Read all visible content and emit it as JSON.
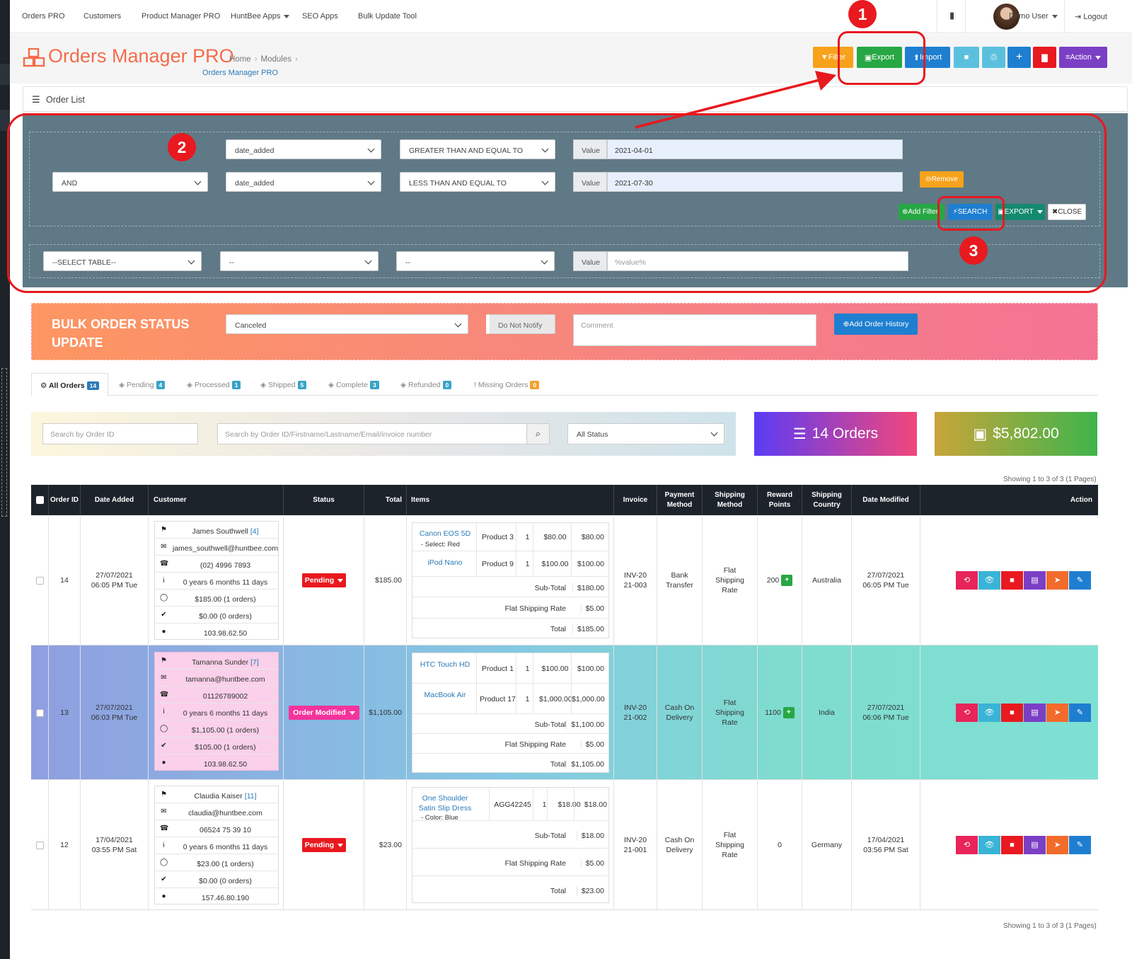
{
  "nav": {
    "items": [
      "Orders PRO",
      "Customers",
      "Product Manager PRO",
      "HuntBee Apps",
      "SEO Apps",
      "Bulk Update Tool"
    ],
    "user": "Demo User",
    "logout": "Logout"
  },
  "header": {
    "title": "Orders Manager PRO",
    "breadcrumb": [
      "Home",
      "Modules",
      "Orders Manager PRO"
    ]
  },
  "toolbar": {
    "filter": "Filter",
    "export": "Export",
    "import": "Import",
    "action": "Action"
  },
  "panel": {
    "title": "Order List"
  },
  "filters": {
    "row1": {
      "field": "date_added",
      "op": "GREATER THAN AND EQUAL TO",
      "value_label": "Value",
      "value": "2021-04-01"
    },
    "row2": {
      "join": "AND",
      "field": "date_added",
      "op": "LESS THAN AND EQUAL TO",
      "value_label": "Value",
      "value": "2021-07-30"
    },
    "remove": "Remove",
    "add_filter": "Add Filter",
    "search": "SEARCH",
    "export": "EXPORT",
    "close": "CLOSE",
    "row3": {
      "table": "--SELECT TABLE--",
      "field": "--",
      "op": "--",
      "value_label": "Value",
      "placeholder": "%value%"
    }
  },
  "annotations": [
    "1",
    "2",
    "3"
  ],
  "bulk": {
    "title": "BULK ORDER STATUS UPDATE",
    "status": "Canceled",
    "notify": "Do Not Notify",
    "comment_placeholder": "Comment",
    "add_history": "Add Order History"
  },
  "tabs": [
    {
      "label": "All Orders",
      "count": "14",
      "color": "#2a7ab8"
    },
    {
      "label": "Pending",
      "count": "4",
      "color": "#39a3c8"
    },
    {
      "label": "Processed",
      "count": "1",
      "color": "#39a3c8"
    },
    {
      "label": "Shipped",
      "count": "5",
      "color": "#39a3c8"
    },
    {
      "label": "Complete",
      "count": "3",
      "color": "#39a3c8"
    },
    {
      "label": "Refunded",
      "count": "0",
      "color": "#39a3c8"
    },
    {
      "label": "Missing Orders",
      "count": "0",
      "color": "#f0a030"
    }
  ],
  "search": {
    "order_id_placeholder": "Search by Order ID",
    "query_placeholder": "Search by Order ID/Firstname/Lastname/Email/invoice number",
    "status": "All Status"
  },
  "stats": {
    "orders": "14 Orders",
    "total": "$5,802.00"
  },
  "showing": "Showing 1 to 3 of 3 (1 Pages)",
  "columns": [
    "Order ID",
    "Date Added",
    "Customer",
    "Status",
    "Total",
    "Items",
    "Invoice",
    "Payment Method",
    "Shipping Method",
    "Reward Points",
    "Shipping Country",
    "Date Modified",
    "Action"
  ],
  "orders": [
    {
      "id": "14",
      "date": "27/07/2021",
      "time": "06:05 PM Tue",
      "status": "Pending",
      "status_color": "#e8191f",
      "total": "$185.00",
      "customer": {
        "name": "James Southwell",
        "count": "[4]",
        "email": "james_southwell@huntbee.com",
        "phone": "(02) 4996 7893",
        "age": "0 years 6 months 11 days",
        "spent": "$185.00 (1 orders)",
        "paid": "$0.00 (0 orders)",
        "ip": "103.98.62.50"
      },
      "items": [
        {
          "name": "Canon EOS 5D",
          "option": "- Select: Red",
          "model": "Product 3",
          "qty": "1",
          "price": "$80.00",
          "total": "$80.00"
        },
        {
          "name": "iPod Nano",
          "option": "",
          "model": "Product 9",
          "qty": "1",
          "price": "$100.00",
          "total": "$100.00"
        }
      ],
      "totals": [
        {
          "label": "Sub-Total",
          "value": "$180.00"
        },
        {
          "label": "Flat Shipping Rate",
          "value": "$5.00"
        },
        {
          "label": "Total",
          "value": "$185.00"
        }
      ],
      "invoice": "INV-2021-003",
      "payment": "Bank Transfer",
      "shipping": "Flat Shipping Rate",
      "reward": "200",
      "country": "Australia",
      "mod_date": "27/07/2021",
      "mod_time": "06:05 PM Tue"
    },
    {
      "id": "13",
      "date": "27/07/2021",
      "time": "06:03 PM Tue",
      "status": "Order Modified",
      "status_color": "#f5339b",
      "total": "$1,105.00",
      "customer": {
        "name": "Tamanna Sunder",
        "count": "[7]",
        "email": "tamanna@huntbee.com",
        "phone": "01126789002",
        "age": "0 years 6 months 11 days",
        "spent": "$1,105.00 (1 orders)",
        "paid": "$105.00 (1 orders)",
        "ip": "103.98.62.50"
      },
      "items": [
        {
          "name": "HTC Touch HD",
          "option": "",
          "model": "Product 1",
          "qty": "1",
          "price": "$100.00",
          "total": "$100.00"
        },
        {
          "name": "MacBook Air",
          "option": "",
          "model": "Product 17",
          "qty": "1",
          "price": "$1,000.00",
          "total": "$1,000.00"
        }
      ],
      "totals": [
        {
          "label": "Sub-Total",
          "value": "$1,100.00"
        },
        {
          "label": "Flat Shipping Rate",
          "value": "$5.00"
        },
        {
          "label": "Total",
          "value": "$1,105.00"
        }
      ],
      "invoice": "INV-2021-002",
      "payment": "Cash On Delivery",
      "shipping": "Flat Shipping Rate",
      "reward": "1100",
      "country": "India",
      "mod_date": "27/07/2021",
      "mod_time": "06:06 PM Tue"
    },
    {
      "id": "12",
      "date": "17/04/2021",
      "time": "03:55 PM Sat",
      "status": "Pending",
      "status_color": "#e8191f",
      "total": "$23.00",
      "customer": {
        "name": "Claudia Kaiser",
        "count": "[11]",
        "email": "claudia@huntbee.com",
        "phone": "06524 75 39 10",
        "age": "0 years 6 months 11 days",
        "spent": "$23.00 (1 orders)",
        "paid": "$0.00 (0 orders)",
        "ip": "157.46.80.190"
      },
      "items": [
        {
          "name": "One Shoulder Satin Slip Dress",
          "option": "- Color: Blue",
          "model": "AGG42245",
          "qty": "1",
          "price": "$18.00",
          "total": "$18.00"
        }
      ],
      "totals": [
        {
          "label": "Sub-Total",
          "value": "$18.00"
        },
        {
          "label": "Flat Shipping Rate",
          "value": "$5.00"
        },
        {
          "label": "Total",
          "value": "$23.00"
        }
      ],
      "invoice": "INV-2021-001",
      "payment": "Cash On Delivery",
      "shipping": "Flat Shipping Rate",
      "reward": "0",
      "country": "Germany",
      "mod_date": "17/04/2021",
      "mod_time": "03:56 PM Sat"
    }
  ],
  "action_icons": [
    {
      "name": "history-icon",
      "glyph": "⟲",
      "color": "#e8245a"
    },
    {
      "name": "view-icon",
      "glyph": "👁",
      "color": "#39b4d6"
    },
    {
      "name": "truck-icon",
      "glyph": "■",
      "color": "#e8191f"
    },
    {
      "name": "pdf-icon",
      "glyph": "▤",
      "color": "#7b3fc4"
    },
    {
      "name": "send-icon",
      "glyph": "➤",
      "color": "#f26b2a"
    },
    {
      "name": "edit-icon",
      "glyph": "✎",
      "color": "#1e7fd0"
    }
  ]
}
